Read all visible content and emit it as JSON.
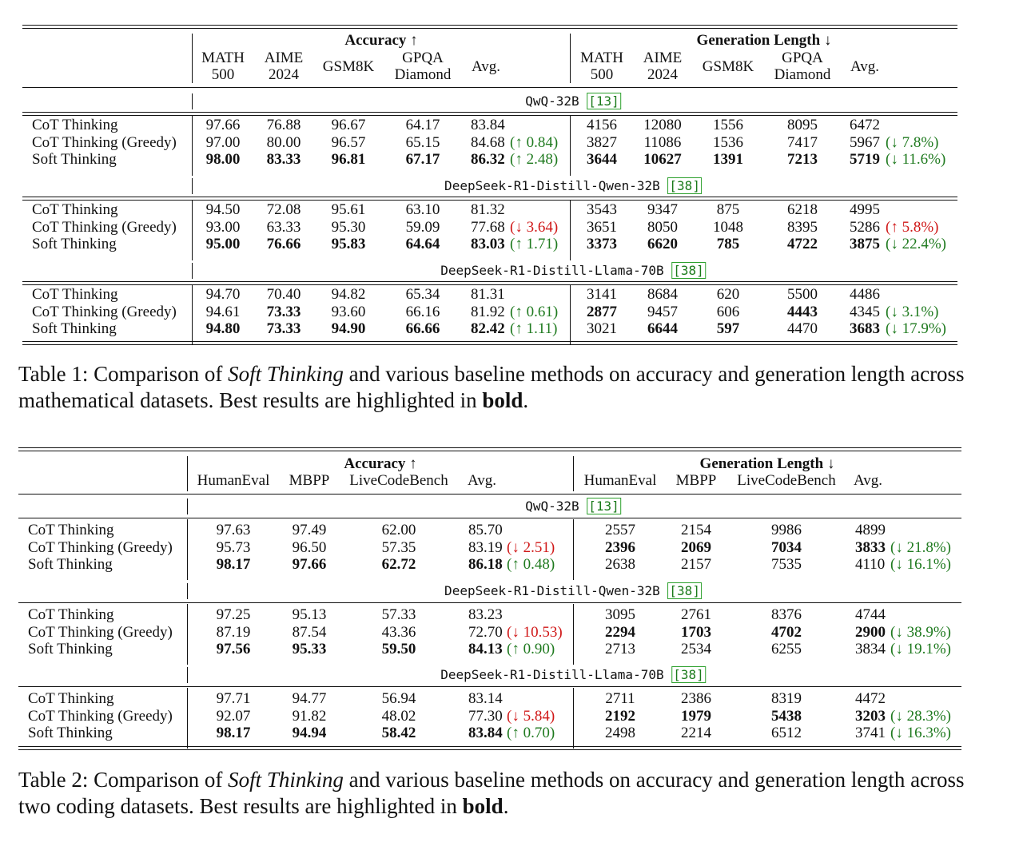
{
  "table1": {
    "header": {
      "accuracy_group": "Accuracy ↑",
      "length_group": "Generation Length ↓",
      "accuracy_cols": [
        [
          "MATH",
          "500"
        ],
        [
          "AIME",
          "2024"
        ],
        [
          "GSM8K",
          ""
        ],
        [
          "GPQA",
          "Diamond"
        ],
        [
          "Avg.",
          ""
        ]
      ],
      "length_cols": [
        [
          "MATH",
          "500"
        ],
        [
          "AIME",
          "2024"
        ],
        [
          "GSM8K",
          ""
        ],
        [
          "GPQA",
          "Diamond"
        ],
        [
          "Avg.",
          ""
        ]
      ]
    },
    "blocks": [
      {
        "model": "QwQ-32B",
        "cite": "[13]",
        "rows": [
          {
            "method": "CoT Thinking",
            "acc": [
              "97.66",
              "76.88",
              "96.67",
              "64.17",
              "83.84"
            ],
            "acc_delta": "",
            "len": [
              "4156",
              "12080",
              "1556",
              "8095",
              "6472"
            ],
            "len_delta": ""
          },
          {
            "method": "CoT Thinking (Greedy)",
            "acc": [
              "97.00",
              "80.00",
              "96.57",
              "65.15",
              "84.68"
            ],
            "acc_delta": "(↑ 0.84)",
            "len": [
              "3827",
              "11086",
              "1536",
              "7417",
              "5967"
            ],
            "len_delta": "(↓ 7.8%)"
          },
          {
            "method": "Soft Thinking",
            "acc": [
              "98.00",
              "83.33",
              "96.81",
              "67.17",
              "86.32"
            ],
            "acc_delta": "(↑ 2.48)",
            "len": [
              "3644",
              "10627",
              "1391",
              "7213",
              "5719"
            ],
            "len_delta": "(↓ 11.6%)"
          }
        ]
      },
      {
        "model": "DeepSeek-R1-Distill-Qwen-32B",
        "cite": "[38]",
        "rows": [
          {
            "method": "CoT Thinking",
            "acc": [
              "94.50",
              "72.08",
              "95.61",
              "63.10",
              "81.32"
            ],
            "acc_delta": "",
            "len": [
              "3543",
              "9347",
              "875",
              "6218",
              "4995"
            ],
            "len_delta": ""
          },
          {
            "method": "CoT Thinking (Greedy)",
            "acc": [
              "93.00",
              "63.33",
              "95.30",
              "59.09",
              "77.68"
            ],
            "acc_delta": "(↓ 3.64)",
            "len": [
              "3651",
              "8050",
              "1048",
              "8395",
              "5286"
            ],
            "len_delta": "(↑ 5.8%)"
          },
          {
            "method": "Soft Thinking",
            "acc": [
              "95.00",
              "76.66",
              "95.83",
              "64.64",
              "83.03"
            ],
            "acc_delta": "(↑ 1.71)",
            "len": [
              "3373",
              "6620",
              "785",
              "4722",
              "3875"
            ],
            "len_delta": "(↓ 22.4%)"
          }
        ]
      },
      {
        "model": "DeepSeek-R1-Distill-Llama-70B",
        "cite": "[38]",
        "rows": [
          {
            "method": "CoT Thinking",
            "acc": [
              "94.70",
              "70.40",
              "94.82",
              "65.34",
              "81.31"
            ],
            "acc_delta": "",
            "len": [
              "3141",
              "8684",
              "620",
              "5500",
              "4486"
            ],
            "len_delta": ""
          },
          {
            "method": "CoT Thinking (Greedy)",
            "acc": [
              "94.61",
              "73.33",
              "93.60",
              "66.16",
              "81.92"
            ],
            "acc_delta": "(↑ 0.61)",
            "len": [
              "2877",
              "9457",
              "606",
              "4443",
              "4345"
            ],
            "len_delta": "(↓ 3.1%)"
          },
          {
            "method": "Soft Thinking",
            "acc": [
              "94.80",
              "73.33",
              "94.90",
              "66.66",
              "82.42"
            ],
            "acc_delta": "(↑ 1.11)",
            "len": [
              "3021",
              "6644",
              "597",
              "4470",
              "3683"
            ],
            "len_delta": "(↓ 17.9%)"
          }
        ]
      }
    ],
    "caption_prefix": "Table 1: Comparison of ",
    "caption_italic": "Soft Thinking",
    "caption_mid": " and various baseline methods on accuracy and generation length across mathematical datasets. Best results are highlighted in ",
    "caption_bold": "bold",
    "caption_end": "."
  },
  "table2": {
    "header": {
      "accuracy_group": "Accuracy ↑",
      "length_group": "Generation Length ↓",
      "accuracy_cols": [
        "HumanEval",
        "MBPP",
        "LiveCodeBench",
        "Avg."
      ],
      "length_cols": [
        "HumanEval",
        "MBPP",
        "LiveCodeBench",
        "Avg."
      ]
    },
    "blocks": [
      {
        "model": "QwQ-32B",
        "cite": "[13]",
        "rows": [
          {
            "method": "CoT Thinking",
            "acc": [
              "97.63",
              "97.49",
              "62.00",
              "85.70"
            ],
            "acc_delta": "",
            "len": [
              "2557",
              "2154",
              "9986",
              "4899"
            ],
            "len_delta": ""
          },
          {
            "method": "CoT Thinking (Greedy)",
            "acc": [
              "95.73",
              "96.50",
              "57.35",
              "83.19"
            ],
            "acc_delta": "(↓ 2.51)",
            "len": [
              "2396",
              "2069",
              "7034",
              "3833"
            ],
            "len_delta": "(↓ 21.8%)"
          },
          {
            "method": "Soft Thinking",
            "acc": [
              "98.17",
              "97.66",
              "62.72",
              "86.18"
            ],
            "acc_delta": "(↑ 0.48)",
            "len": [
              "2638",
              "2157",
              "7535",
              "4110"
            ],
            "len_delta": "(↓ 16.1%)"
          }
        ]
      },
      {
        "model": "DeepSeek-R1-Distill-Qwen-32B",
        "cite": "[38]",
        "rows": [
          {
            "method": "CoT Thinking",
            "acc": [
              "97.25",
              "95.13",
              "57.33",
              "83.23"
            ],
            "acc_delta": "",
            "len": [
              "3095",
              "2761",
              "8376",
              "4744"
            ],
            "len_delta": ""
          },
          {
            "method": "CoT Thinking (Greedy)",
            "acc": [
              "87.19",
              "87.54",
              "43.36",
              "72.70"
            ],
            "acc_delta": "(↓ 10.53)",
            "len": [
              "2294",
              "1703",
              "4702",
              "2900"
            ],
            "len_delta": "(↓ 38.9%)"
          },
          {
            "method": "Soft Thinking",
            "acc": [
              "97.56",
              "95.33",
              "59.50",
              "84.13"
            ],
            "acc_delta": "(↑ 0.90)",
            "len": [
              "2713",
              "2534",
              "6255",
              "3834"
            ],
            "len_delta": "(↓ 19.1%)"
          }
        ]
      },
      {
        "model": "DeepSeek-R1-Distill-Llama-70B",
        "cite": "[38]",
        "rows": [
          {
            "method": "CoT Thinking",
            "acc": [
              "97.71",
              "94.77",
              "56.94",
              "83.14"
            ],
            "acc_delta": "",
            "len": [
              "2711",
              "2386",
              "8319",
              "4472"
            ],
            "len_delta": ""
          },
          {
            "method": "CoT Thinking (Greedy)",
            "acc": [
              "92.07",
              "91.82",
              "48.02",
              "77.30"
            ],
            "acc_delta": "(↓ 5.84)",
            "len": [
              "2192",
              "1979",
              "5438",
              "3203"
            ],
            "len_delta": "(↓ 28.3%)"
          },
          {
            "method": "Soft Thinking",
            "acc": [
              "98.17",
              "94.94",
              "58.42",
              "83.84"
            ],
            "acc_delta": "(↑ 0.70)",
            "len": [
              "2498",
              "2214",
              "6512",
              "3741"
            ],
            "len_delta": "(↓ 16.3%)"
          }
        ]
      }
    ],
    "caption_prefix": "Table 2: Comparison of ",
    "caption_italic": "Soft Thinking",
    "caption_mid": " and various baseline methods on accuracy and generation length across two coding datasets. Best results are highlighted in ",
    "caption_bold": "bold",
    "caption_end": "."
  }
}
